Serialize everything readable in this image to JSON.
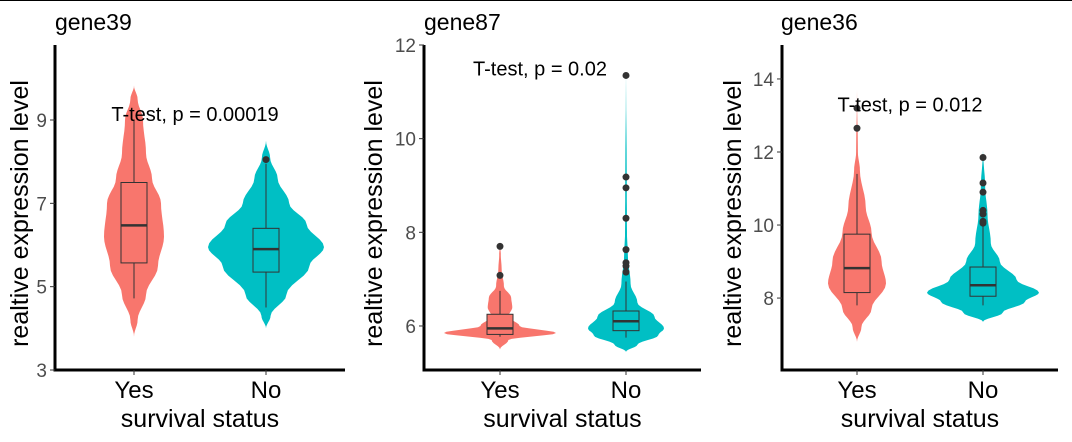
{
  "chart_data": [
    {
      "type": "violin",
      "title": "gene39",
      "xlabel": "survival status",
      "ylabel": "realtive expression level",
      "categories": [
        "Yes",
        "No"
      ],
      "yticks": [
        3,
        5,
        7,
        9
      ],
      "ylim": [
        3,
        10.8
      ],
      "annotation": {
        "text": "T-test, p = 0.00019",
        "y": 9.15
      },
      "colors": [
        "#F8766D",
        "#00BFC4"
      ],
      "series": [
        {
          "category": "Yes",
          "box": {
            "lower_whisker": 4.72,
            "q1": 5.57,
            "median": 6.47,
            "q3": 7.5,
            "upper_whisker": 9.0
          },
          "outliers": [],
          "density": [
            [
              3.8,
              0
            ],
            [
              4.2,
              0.12
            ],
            [
              4.8,
              0.4
            ],
            [
              5.5,
              0.8
            ],
            [
              6.2,
              1
            ],
            [
              7.0,
              0.9
            ],
            [
              7.6,
              0.6
            ],
            [
              8.2,
              0.4
            ],
            [
              9.0,
              0.3
            ],
            [
              9.5,
              0.12
            ],
            [
              9.83,
              0
            ]
          ]
        },
        {
          "category": "No",
          "box": {
            "lower_whisker": 4.5,
            "q1": 5.35,
            "median": 5.9,
            "q3": 6.4,
            "upper_whisker": 7.95
          },
          "outliers": [
            8.05
          ],
          "density": [
            [
              4.0,
              0
            ],
            [
              4.3,
              0.08
            ],
            [
              4.8,
              0.35
            ],
            [
              5.5,
              0.75
            ],
            [
              5.95,
              1
            ],
            [
              6.5,
              0.7
            ],
            [
              7.0,
              0.4
            ],
            [
              7.6,
              0.2
            ],
            [
              8.1,
              0.07
            ],
            [
              8.5,
              0
            ]
          ]
        }
      ]
    },
    {
      "type": "violin",
      "title": "gene87",
      "xlabel": "survival status",
      "ylabel": "realtive expression level",
      "categories": [
        "Yes",
        "No"
      ],
      "yticks": [
        6,
        8,
        10,
        12
      ],
      "ylim": [
        5.06,
        12
      ],
      "annotation": {
        "text": "T-test, p = 0.02",
        "y": 11.5
      },
      "colors": [
        "#F8766D",
        "#00BFC4"
      ],
      "series": [
        {
          "category": "Yes",
          "box": {
            "lower_whisker": 5.77,
            "q1": 5.82,
            "median": 5.95,
            "q3": 6.25,
            "upper_whisker": 6.75
          },
          "outliers": [
            7.08,
            7.7
          ],
          "density": [
            [
              5.5,
              0
            ],
            [
              5.7,
              0.15
            ],
            [
              5.85,
              1
            ],
            [
              6.0,
              0.35
            ],
            [
              6.2,
              0.15
            ],
            [
              6.4,
              0.22
            ],
            [
              6.6,
              0.2
            ],
            [
              6.85,
              0.07
            ],
            [
              7.2,
              0.03
            ],
            [
              7.5,
              0.015
            ],
            [
              7.8,
              0
            ]
          ]
        },
        {
          "category": "No",
          "box": {
            "lower_whisker": 5.75,
            "q1": 5.9,
            "median": 6.1,
            "q3": 6.32,
            "upper_whisker": 6.95
          },
          "outliers": [
            7.15,
            7.28,
            7.35,
            7.63,
            8.3,
            8.95,
            9.18,
            11.35
          ],
          "density": [
            [
              5.45,
              0
            ],
            [
              5.6,
              0.3
            ],
            [
              5.8,
              0.85
            ],
            [
              5.95,
              1
            ],
            [
              6.2,
              0.75
            ],
            [
              6.5,
              0.3
            ],
            [
              6.9,
              0.12
            ],
            [
              7.5,
              0.05
            ],
            [
              8,
              0.025
            ],
            [
              9,
              0.02
            ],
            [
              11.4,
              0
            ]
          ]
        }
      ]
    },
    {
      "type": "violin",
      "title": "gene36",
      "xlabel": "survival status",
      "ylabel": "realtive expression level",
      "categories": [
        "Yes",
        "No"
      ],
      "yticks": [
        8,
        10,
        12,
        14
      ],
      "ylim": [
        6.03,
        14.93
      ],
      "annotation": {
        "text": "T-test, p = 0.012",
        "y": 13.3
      },
      "colors": [
        "#F8766D",
        "#00BFC4"
      ],
      "series": [
        {
          "category": "Yes",
          "box": {
            "lower_whisker": 7.8,
            "q1": 8.15,
            "median": 8.82,
            "q3": 9.75,
            "upper_whisker": 11.4
          },
          "outliers": [
            12.65,
            13.2
          ],
          "density": [
            [
              6.8,
              0
            ],
            [
              7.2,
              0.15
            ],
            [
              7.7,
              0.5
            ],
            [
              8.4,
              1
            ],
            [
              9,
              0.85
            ],
            [
              9.8,
              0.5
            ],
            [
              10.5,
              0.3
            ],
            [
              11.5,
              0.1
            ],
            [
              12,
              0.03
            ],
            [
              13.7,
              0
            ]
          ]
        },
        {
          "category": "No",
          "box": {
            "lower_whisker": 7.8,
            "q1": 8.05,
            "median": 8.35,
            "q3": 8.85,
            "upper_whisker": 10.0
          },
          "outliers": [
            10.05,
            10.1,
            10.3,
            10.4,
            10.9,
            11.15,
            11.85
          ],
          "density": [
            [
              7.35,
              0
            ],
            [
              7.6,
              0.35
            ],
            [
              7.9,
              0.75
            ],
            [
              8.15,
              1
            ],
            [
              8.5,
              0.6
            ],
            [
              9,
              0.3
            ],
            [
              9.5,
              0.14
            ],
            [
              10.3,
              0.08
            ],
            [
              11,
              0.04
            ],
            [
              12.05,
              0
            ]
          ]
        }
      ]
    }
  ]
}
